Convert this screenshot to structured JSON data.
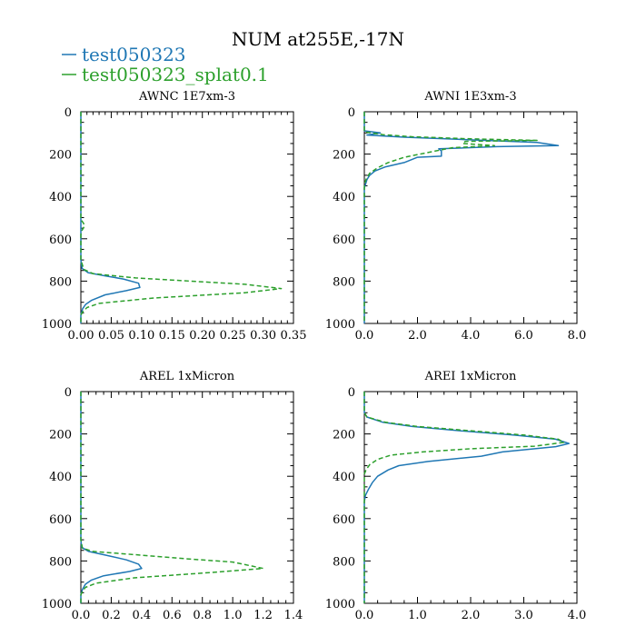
{
  "chart_data": {
    "type": "line",
    "title": "NUM at255E,-17N",
    "colors": {
      "series1": "#1f77b4",
      "series2": "#2ca02c"
    },
    "legend": {
      "placement": "top-left",
      "entries": [
        {
          "name": "test050323",
          "color": "#1f77b4",
          "dash": "solid"
        },
        {
          "name": "test050323_splat0.1",
          "color": "#2ca02c",
          "dash": "dashed"
        }
      ]
    },
    "panels": [
      {
        "title": "AWNC  1E7xm-3",
        "xlim": [
          0,
          0.35
        ],
        "ylim": [
          1000,
          0
        ],
        "xticks": [
          0,
          0.05,
          0.1,
          0.15,
          0.2,
          0.25,
          0.3,
          0.35
        ],
        "xticklabels": [
          "0.00",
          "0.05",
          "0.10",
          "0.15",
          "0.20",
          "0.25",
          "0.30",
          "0.35"
        ],
        "yticks": [
          0,
          200,
          400,
          600,
          800,
          1000
        ],
        "yticklabels": [
          "0",
          "200",
          "400",
          "600",
          "800",
          "1000"
        ],
        "series": [
          {
            "name": "test050323",
            "points": [
              [
                0,
                0
              ],
              [
                0,
                700
              ],
              [
                0.002,
                740
              ],
              [
                0.012,
                760
              ],
              [
                0.04,
                775
              ],
              [
                0.07,
                790
              ],
              [
                0.095,
                810
              ],
              [
                0.097,
                830
              ],
              [
                0.075,
                845
              ],
              [
                0.04,
                865
              ],
              [
                0.018,
                890
              ],
              [
                0.008,
                910
              ],
              [
                0.003,
                930
              ],
              [
                0,
                960
              ],
              [
                0,
                1000
              ]
            ]
          },
          {
            "name": "test050323_splat0.1",
            "points": [
              [
                0,
                0
              ],
              [
                0,
                510
              ],
              [
                0.004,
                525
              ],
              [
                0.006,
                540
              ],
              [
                0.002,
                560
              ],
              [
                0,
                580
              ],
              [
                0,
                700
              ],
              [
                0.005,
                745
              ],
              [
                0.02,
                765
              ],
              [
                0.09,
                785
              ],
              [
                0.18,
                800
              ],
              [
                0.27,
                815
              ],
              [
                0.33,
                835
              ],
              [
                0.27,
                855
              ],
              [
                0.12,
                880
              ],
              [
                0.03,
                905
              ],
              [
                0.01,
                925
              ],
              [
                0.003,
                945
              ],
              [
                0,
                960
              ],
              [
                0,
                1000
              ]
            ]
          }
        ]
      },
      {
        "title": "AWNI  1E3xm-3",
        "xlim": [
          0,
          8
        ],
        "ylim": [
          1000,
          0
        ],
        "xticks": [
          0,
          2,
          4,
          6,
          8
        ],
        "xticklabels": [
          "0.0",
          "2.0",
          "4.0",
          "6.0",
          "8.0"
        ],
        "yticks": [
          0,
          200,
          400,
          600,
          800,
          1000
        ],
        "yticklabels": [
          "0",
          "200",
          "400",
          "600",
          "800",
          "1000"
        ],
        "series": [
          {
            "name": "test050323",
            "points": [
              [
                0,
                0
              ],
              [
                0,
                90
              ],
              [
                0.6,
                100
              ],
              [
                0.1,
                110
              ],
              [
                1.5,
                120
              ],
              [
                3.5,
                130
              ],
              [
                6.5,
                145
              ],
              [
                7.3,
                160
              ],
              [
                5.0,
                165
              ],
              [
                2.8,
                175
              ],
              [
                2.9,
                185
              ],
              [
                2.9,
                210
              ],
              [
                2.0,
                215
              ],
              [
                1.5,
                240
              ],
              [
                0.8,
                260
              ],
              [
                0.4,
                280
              ],
              [
                0.2,
                300
              ],
              [
                0.1,
                320
              ],
              [
                0.05,
                340
              ],
              [
                0,
                360
              ],
              [
                0,
                1000
              ]
            ]
          },
          {
            "name": "test050323_splat0.1",
            "points": [
              [
                0,
                0
              ],
              [
                0,
                95
              ],
              [
                0.7,
                108
              ],
              [
                1.8,
                118
              ],
              [
                4.0,
                128
              ],
              [
                6.5,
                135
              ],
              [
                3.8,
                140
              ],
              [
                3.7,
                150
              ],
              [
                4.9,
                160
              ],
              [
                3.3,
                170
              ],
              [
                2.9,
                180
              ],
              [
                2.3,
                195
              ],
              [
                1.5,
                215
              ],
              [
                0.9,
                240
              ],
              [
                0.5,
                265
              ],
              [
                0.2,
                290
              ],
              [
                0.08,
                315
              ],
              [
                0.02,
                335
              ],
              [
                0,
                350
              ],
              [
                0,
                1000
              ]
            ]
          }
        ]
      },
      {
        "title": "AREL  1xMicron",
        "xlim": [
          0,
          1.4
        ],
        "ylim": [
          1000,
          0
        ],
        "xticks": [
          0,
          0.2,
          0.4,
          0.6,
          0.8,
          1.0,
          1.2,
          1.4
        ],
        "xticklabels": [
          "0.0",
          "0.2",
          "0.4",
          "0.6",
          "0.8",
          "1.0",
          "1.2",
          "1.4"
        ],
        "yticks": [
          0,
          200,
          400,
          600,
          800,
          1000
        ],
        "yticklabels": [
          "0",
          "200",
          "400",
          "600",
          "800",
          "1000"
        ],
        "series": [
          {
            "name": "test050323",
            "points": [
              [
                0,
                0
              ],
              [
                0,
                700
              ],
              [
                0.005,
                735
              ],
              [
                0.05,
                755
              ],
              [
                0.18,
                775
              ],
              [
                0.3,
                795
              ],
              [
                0.38,
                815
              ],
              [
                0.4,
                835
              ],
              [
                0.32,
                850
              ],
              [
                0.15,
                870
              ],
              [
                0.07,
                890
              ],
              [
                0.03,
                910
              ],
              [
                0.01,
                935
              ],
              [
                0,
                960
              ],
              [
                0,
                1000
              ]
            ]
          },
          {
            "name": "test050323_splat0.1",
            "points": [
              [
                0,
                0
              ],
              [
                0,
                700
              ],
              [
                0.01,
                740
              ],
              [
                0.08,
                755
              ],
              [
                0.35,
                770
              ],
              [
                0.7,
                790
              ],
              [
                1.0,
                805
              ],
              [
                1.2,
                835
              ],
              [
                0.85,
                855
              ],
              [
                0.35,
                880
              ],
              [
                0.1,
                905
              ],
              [
                0.03,
                925
              ],
              [
                0.01,
                945
              ],
              [
                0,
                960
              ],
              [
                0,
                1000
              ]
            ]
          }
        ]
      },
      {
        "title": "AREI  1xMicron",
        "xlim": [
          0,
          4
        ],
        "ylim": [
          1000,
          0
        ],
        "xticks": [
          0,
          1,
          2,
          3,
          4
        ],
        "xticklabels": [
          "0.0",
          "1.0",
          "2.0",
          "3.0",
          "4.0"
        ],
        "yticks": [
          0,
          200,
          400,
          600,
          800,
          1000
        ],
        "yticklabels": [
          "0",
          "200",
          "400",
          "600",
          "800",
          "1000"
        ],
        "series": [
          {
            "name": "test050323",
            "points": [
              [
                0,
                0
              ],
              [
                0,
                100
              ],
              [
                0.05,
                120
              ],
              [
                0.35,
                145
              ],
              [
                0.9,
                165
              ],
              [
                1.8,
                185
              ],
              [
                2.8,
                205
              ],
              [
                3.6,
                225
              ],
              [
                3.85,
                245
              ],
              [
                3.6,
                260
              ],
              [
                2.6,
                285
              ],
              [
                2.2,
                305
              ],
              [
                1.2,
                330
              ],
              [
                0.65,
                350
              ],
              [
                0.45,
                370
              ],
              [
                0.25,
                400
              ],
              [
                0.15,
                430
              ],
              [
                0.08,
                460
              ],
              [
                0.02,
                490
              ],
              [
                0,
                520
              ],
              [
                0,
                1000
              ]
            ]
          },
          {
            "name": "test050323_splat0.1",
            "points": [
              [
                0,
                0
              ],
              [
                0,
                100
              ],
              [
                0.05,
                120
              ],
              [
                0.4,
                145
              ],
              [
                1.0,
                165
              ],
              [
                2.0,
                185
              ],
              [
                3.0,
                205
              ],
              [
                3.65,
                225
              ],
              [
                3.75,
                240
              ],
              [
                3.2,
                258
              ],
              [
                2.0,
                270
              ],
              [
                1.1,
                285
              ],
              [
                0.5,
                300
              ],
              [
                0.25,
                320
              ],
              [
                0.1,
                345
              ],
              [
                0.03,
                370
              ],
              [
                0,
                390
              ],
              [
                0,
                1000
              ]
            ]
          }
        ]
      }
    ]
  }
}
